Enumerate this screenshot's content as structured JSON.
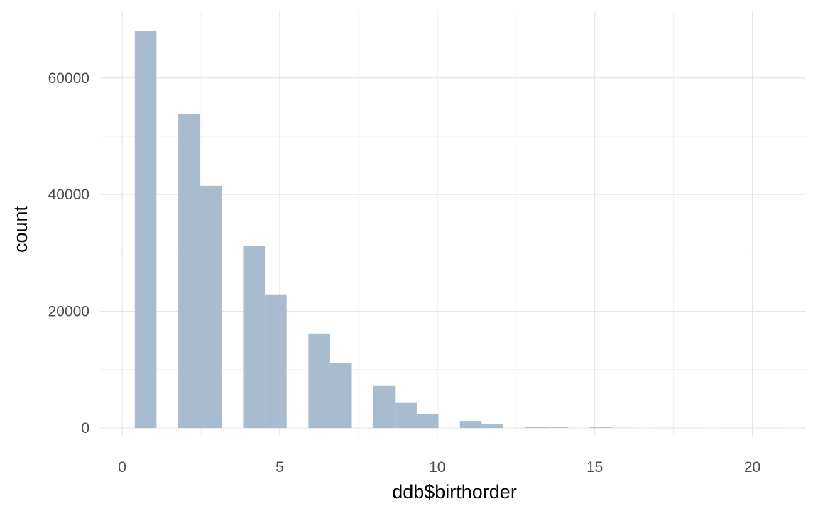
{
  "chart_data": {
    "type": "bar",
    "histogram": true,
    "xlabel": "ddb$birthorder",
    "ylabel": "count",
    "xlim": [
      -0.7,
      21.7
    ],
    "ylim": [
      0,
      70000
    ],
    "x_ticks": [
      0,
      5,
      10,
      15,
      20
    ],
    "x_tick_labels": [
      "0",
      "5",
      "10",
      "15",
      "20"
    ],
    "y_ticks": [
      0,
      20000,
      40000,
      60000
    ],
    "y_tick_labels": [
      "0",
      "20000",
      "40000",
      "60000"
    ],
    "x_minor_ticks": [
      2.5,
      7.5,
      12.5,
      17.5
    ],
    "y_minor_ticks": [
      10000,
      30000,
      50000
    ],
    "grid": true,
    "bar_color": "#a9bccf",
    "bins": [
      {
        "x0": 0.4,
        "x1": 1.09,
        "count": 68000
      },
      {
        "x0": 1.78,
        "x1": 2.47,
        "count": 53800
      },
      {
        "x0": 2.47,
        "x1": 3.16,
        "count": 41500
      },
      {
        "x0": 3.84,
        "x1": 4.53,
        "count": 31200
      },
      {
        "x0": 4.53,
        "x1": 5.22,
        "count": 22900
      },
      {
        "x0": 5.91,
        "x1": 6.6,
        "count": 16200
      },
      {
        "x0": 6.6,
        "x1": 7.29,
        "count": 11100
      },
      {
        "x0": 7.97,
        "x1": 8.66,
        "count": 7200
      },
      {
        "x0": 8.66,
        "x1": 9.35,
        "count": 4300
      },
      {
        "x0": 9.35,
        "x1": 10.04,
        "count": 2400
      },
      {
        "x0": 10.72,
        "x1": 11.41,
        "count": 1200
      },
      {
        "x0": 11.41,
        "x1": 12.1,
        "count": 600
      },
      {
        "x0": 12.79,
        "x1": 13.48,
        "count": 200
      },
      {
        "x0": 13.48,
        "x1": 14.16,
        "count": 100
      },
      {
        "x0": 14.85,
        "x1": 15.54,
        "count": 100
      },
      {
        "x0": 15.54,
        "x1": 16.23,
        "count": 20
      },
      {
        "x0": 16.91,
        "x1": 17.6,
        "count": 10
      },
      {
        "x0": 17.6,
        "x1": 18.29,
        "count": 5
      },
      {
        "x0": 18.97,
        "x1": 19.66,
        "count": 3
      },
      {
        "x0": 19.66,
        "x1": 20.35,
        "count": 2
      },
      {
        "x0": 20.35,
        "x1": 21.04,
        "count": 1
      }
    ]
  }
}
